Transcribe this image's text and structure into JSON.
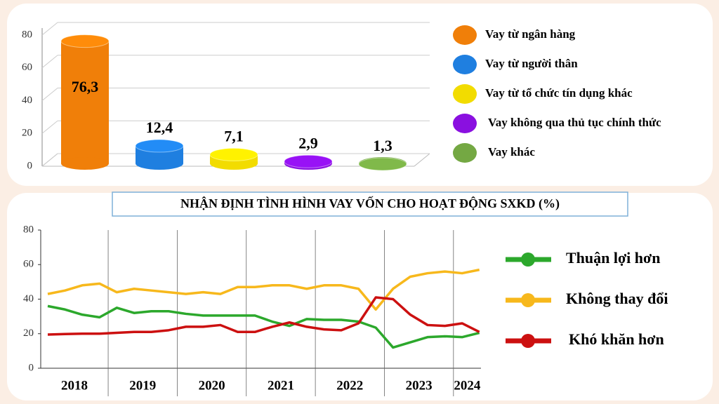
{
  "chart_data": [
    {
      "type": "bar3d",
      "categories": [
        "Vay từ ngân hàng",
        "Vay từ người thân",
        "Vay từ tổ chức tín dụng khác",
        "Vay không qua thủ tục chính thức",
        "Vay khác"
      ],
      "values": [
        76.3,
        12.4,
        7.1,
        2.9,
        1.3
      ],
      "value_labels": [
        "76,3",
        "12,4",
        "7,1",
        "2,9",
        "1,3"
      ],
      "colors": [
        "#f07f09",
        "#1f7fe0",
        "#f2dc00",
        "#8a10e0",
        "#74a843"
      ],
      "ylim": [
        0,
        80
      ],
      "yticks": [
        0,
        20,
        40,
        60,
        80
      ],
      "grid": true,
      "legend": "right"
    },
    {
      "type": "line",
      "title": "NHẬN ĐỊNH TÌNH HÌNH VAY VỐN CHO HOẠT ĐỘNG SXKD (%)",
      "categories": [
        "2018",
        null,
        null,
        null,
        "2019",
        null,
        null,
        null,
        "2020",
        null,
        null,
        null,
        "2021",
        null,
        null,
        null,
        "2022",
        null,
        null,
        null,
        "2023",
        null,
        null,
        null,
        "2024",
        null
      ],
      "series": [
        {
          "name": "Thuận lợi hơn",
          "color": "#2ca82c",
          "values": [
            36,
            34,
            31,
            29.5,
            35,
            32,
            33,
            33,
            31.5,
            30.5,
            30.5,
            30.5,
            30.5,
            27,
            24.5,
            28.5,
            28,
            28,
            27,
            23.5,
            12,
            15,
            18,
            18.5,
            18,
            20.5
          ]
        },
        {
          "name": "Không thay đổi",
          "color": "#f7b81c",
          "values": [
            43,
            45,
            48,
            49,
            44,
            46,
            45,
            44,
            43,
            44,
            43,
            47,
            47,
            48,
            48,
            46,
            48,
            48,
            46,
            34,
            46,
            53,
            55,
            56,
            55,
            57
          ]
        },
        {
          "name": "Khó khăn hơn",
          "color": "#cc1010",
          "values": [
            19.5,
            19.8,
            20,
            20,
            20.5,
            21,
            21,
            22,
            24,
            24,
            25,
            21,
            21,
            24,
            26.5,
            24,
            22.5,
            22,
            26,
            41,
            40,
            31,
            25,
            24.5,
            26,
            21
          ]
        }
      ],
      "ylim": [
        0,
        80
      ],
      "yticks": [
        0,
        20,
        40,
        60,
        80
      ],
      "legend": "right"
    }
  ]
}
